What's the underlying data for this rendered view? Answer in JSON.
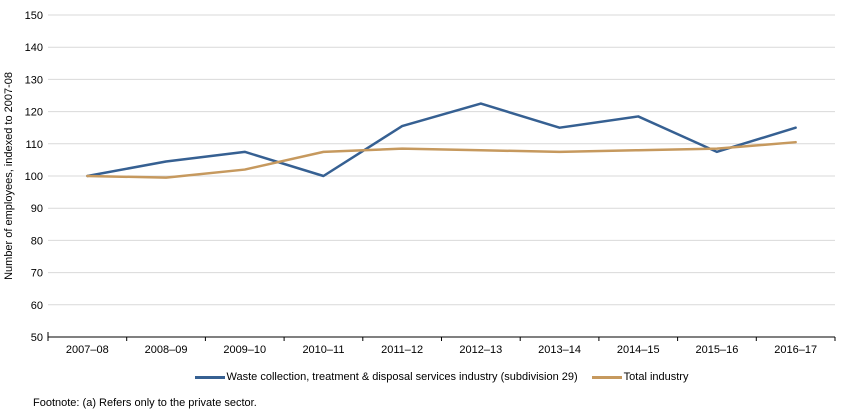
{
  "chart_data": {
    "type": "line",
    "ylabel": "Number of employees, indexed to 2007-08",
    "xlabel": "",
    "categories": [
      "2007–08",
      "2008–09",
      "2009–10",
      "2010–11",
      "2011–12",
      "2012–13",
      "2013–14",
      "2014–15",
      "2015–16",
      "2016–17"
    ],
    "series": [
      {
        "name": "Waste collection, treatment & disposal services industry (subdivision 29)",
        "color": "#366092",
        "values": [
          100,
          104.5,
          107.5,
          100,
          115.5,
          122.5,
          115,
          118.5,
          107.5,
          115
        ]
      },
      {
        "name": "Total industry",
        "color": "#C6995E",
        "values": [
          100,
          99.5,
          102,
          107.5,
          108.5,
          108,
          107.5,
          108,
          108.5,
          110.5
        ]
      }
    ],
    "ylim": [
      50,
      150
    ],
    "yticks": [
      50,
      60,
      70,
      80,
      90,
      100,
      110,
      120,
      130,
      140,
      150
    ],
    "grid": "horizontal",
    "legend_position": "bottom"
  },
  "footnote": "Footnote: (a) Refers only to the private sector.",
  "colors": {
    "gridline": "#D9D9D9",
    "axis": "#000000",
    "text": "#000000",
    "background": "#FFFFFF"
  }
}
